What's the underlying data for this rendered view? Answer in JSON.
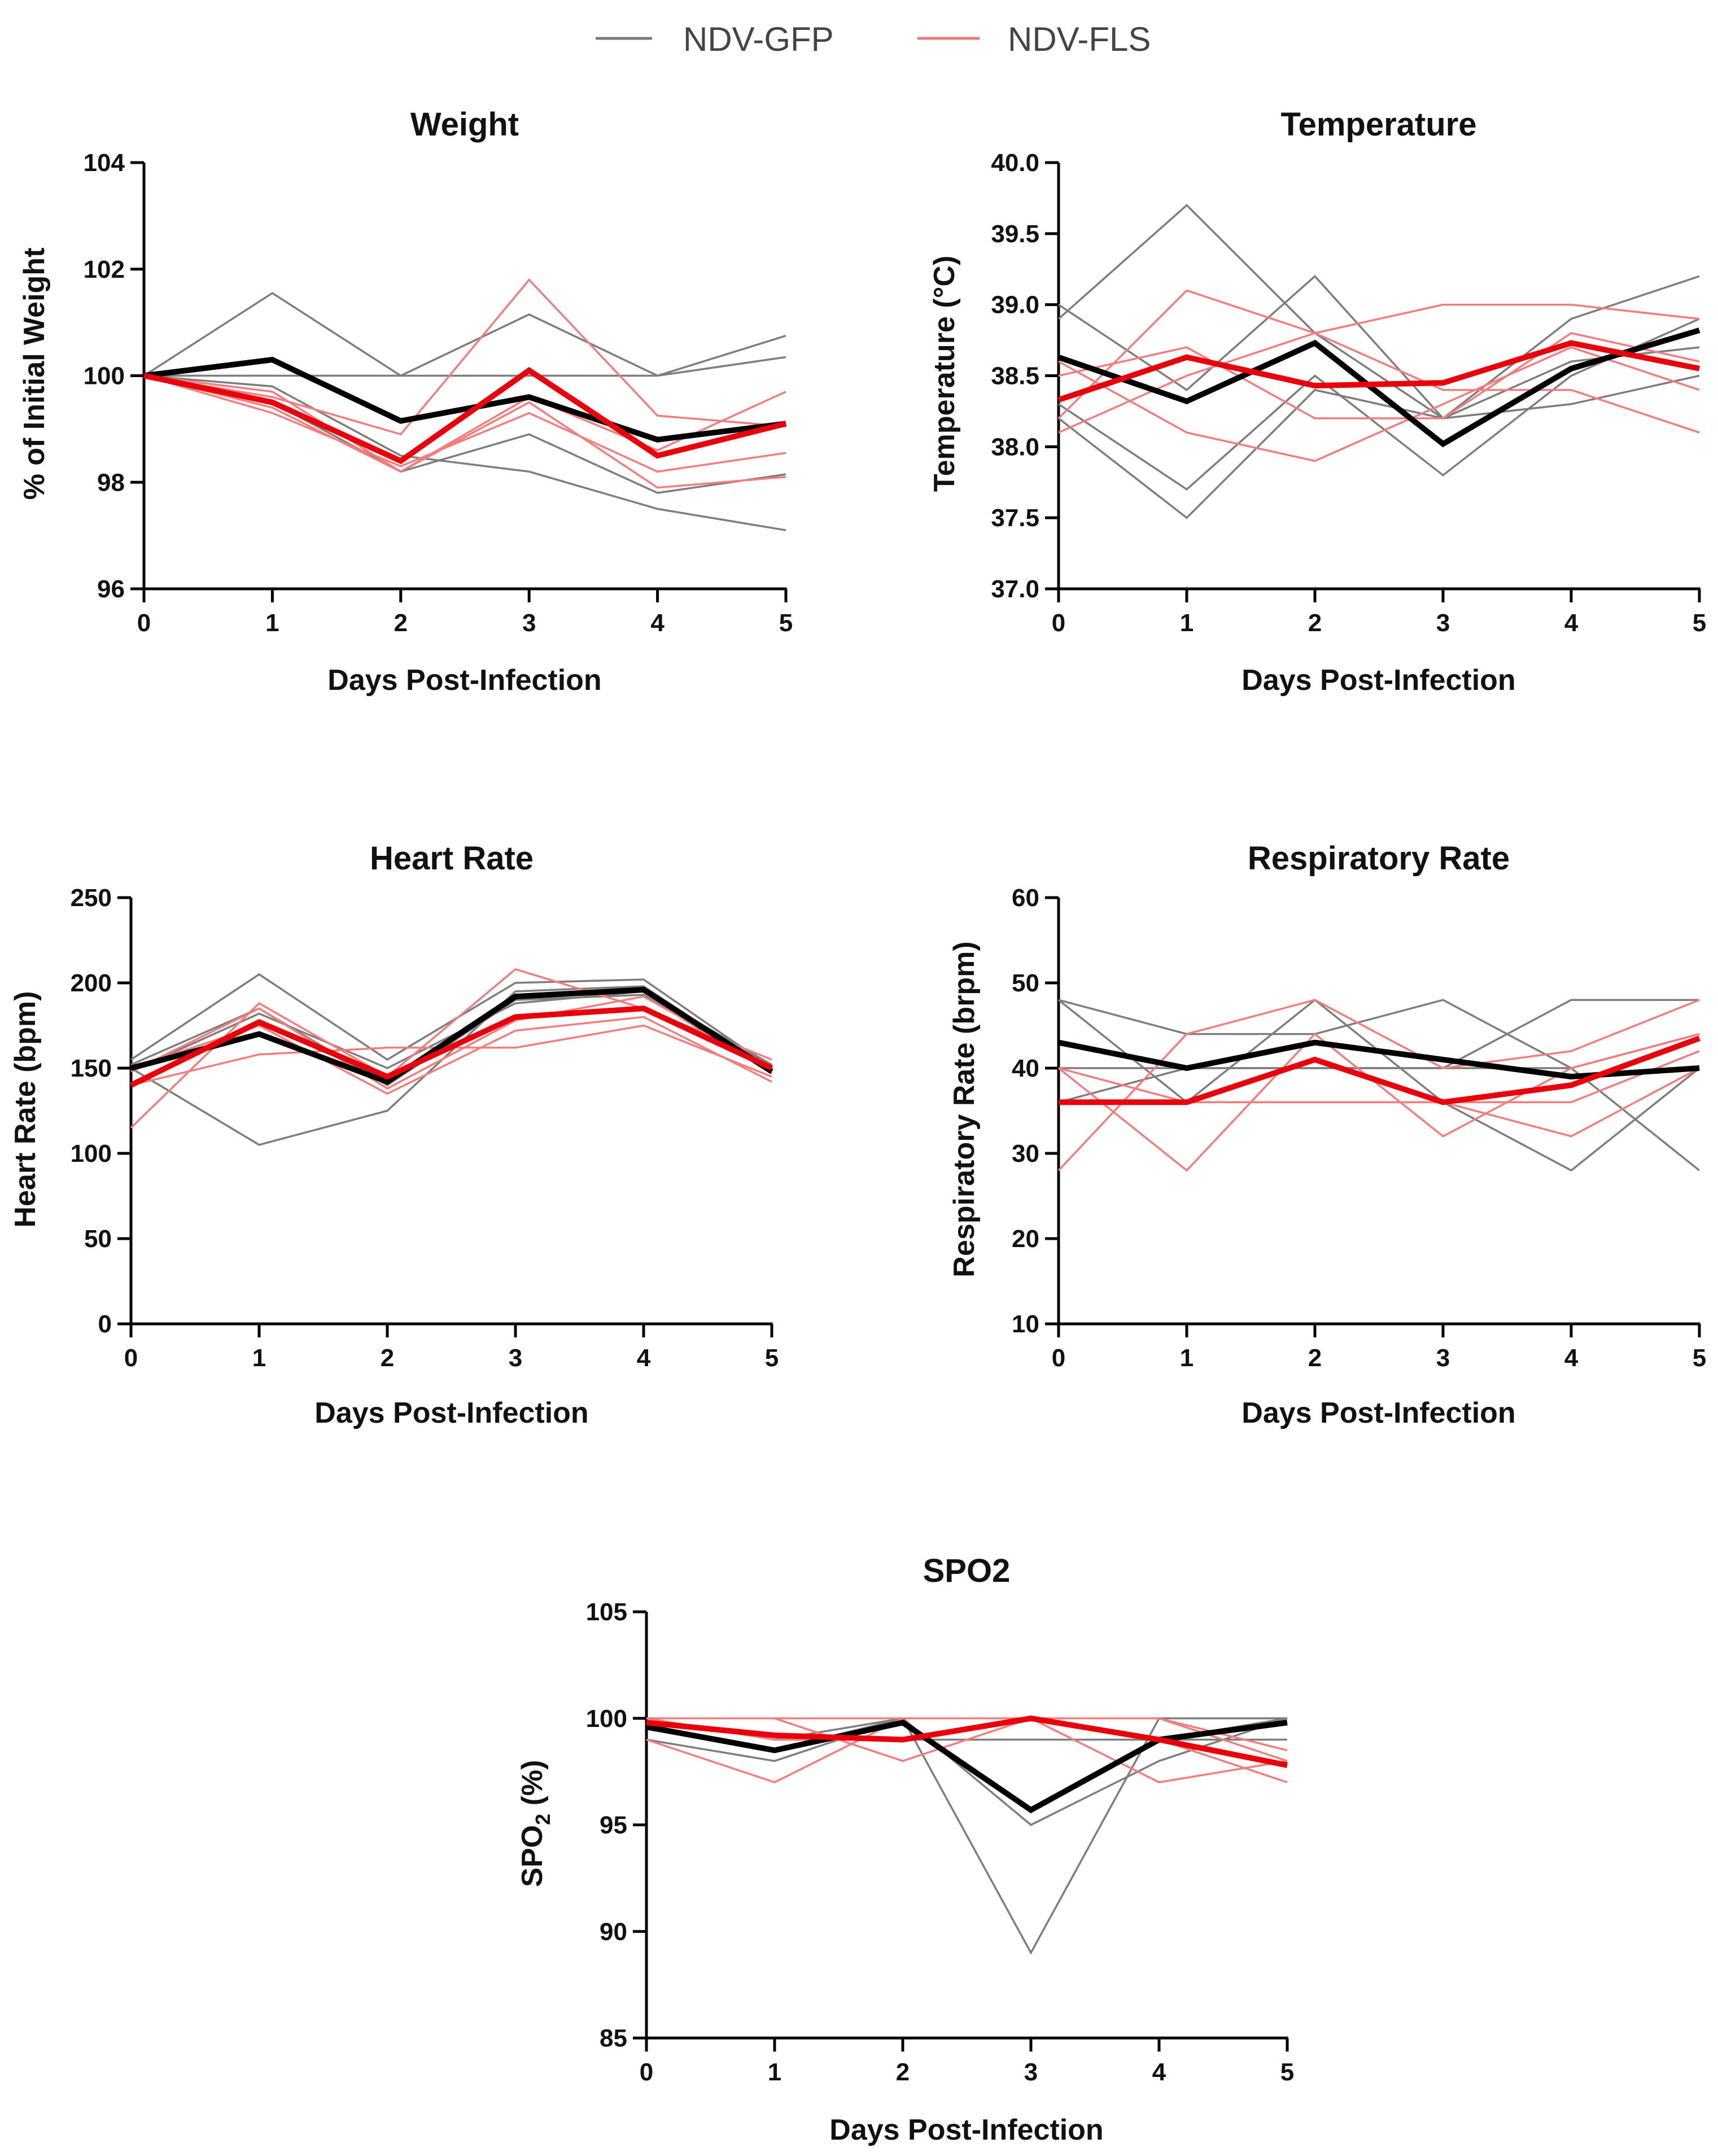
{
  "legend": {
    "items": [
      {
        "label": "NDV-GFP",
        "color": "#7a7a7a"
      },
      {
        "label": "NDV-FLS",
        "color": "#f07a7a"
      }
    ]
  },
  "colors": {
    "gfp_individual": "#7d7d7d",
    "fls_individual": "#f37c7c",
    "gfp_mean": "#000000",
    "fls_mean": "#e8000b",
    "axis": "#000000"
  },
  "chart_data": [
    {
      "id": "weight",
      "type": "line",
      "title": "Weight",
      "xlabel": "Days Post-Infection",
      "ylabel": "% of Initial Weight",
      "x": [
        0,
        1,
        2,
        3,
        4,
        5
      ],
      "xlim": [
        0,
        5
      ],
      "ylim": [
        96,
        104
      ],
      "yticks": [
        96,
        98,
        100,
        102,
        104
      ],
      "ytick_labels": [
        "96",
        "98",
        "100",
        "102",
        "104"
      ],
      "series": [
        {
          "name": "NDV-GFP animal 1",
          "group": "gfp",
          "values": [
            100,
            101.55,
            100.0,
            101.15,
            100.0,
            100.75
          ]
        },
        {
          "name": "NDV-GFP animal 2",
          "group": "gfp",
          "values": [
            100,
            100.0,
            100.0,
            100.0,
            100.0,
            100.35
          ]
        },
        {
          "name": "NDV-GFP animal 3",
          "group": "gfp",
          "values": [
            100,
            99.5,
            98.2,
            98.9,
            97.8,
            98.15
          ]
        },
        {
          "name": "NDV-GFP animal 4",
          "group": "gfp",
          "values": [
            100,
            99.8,
            98.5,
            98.2,
            97.5,
            97.1
          ]
        },
        {
          "name": "NDV-FLS animal 1",
          "group": "fls",
          "values": [
            100,
            99.6,
            98.9,
            101.8,
            99.25,
            99.05
          ]
        },
        {
          "name": "NDV-FLS animal 2",
          "group": "fls",
          "values": [
            100,
            99.4,
            98.2,
            99.6,
            98.6,
            99.7
          ]
        },
        {
          "name": "NDV-FLS animal 3",
          "group": "fls",
          "values": [
            100,
            99.3,
            98.3,
            99.3,
            98.2,
            98.55
          ]
        },
        {
          "name": "NDV-FLS animal 4",
          "group": "fls",
          "values": [
            100,
            99.7,
            98.2,
            99.5,
            97.9,
            98.1
          ]
        },
        {
          "name": "NDV-GFP mean",
          "group": "gfp_mean",
          "values": [
            100,
            100.3,
            99.15,
            99.6,
            98.8,
            99.1
          ]
        },
        {
          "name": "NDV-FLS mean",
          "group": "fls_mean",
          "values": [
            100,
            99.5,
            98.4,
            100.1,
            98.5,
            99.1
          ]
        }
      ]
    },
    {
      "id": "temperature",
      "type": "line",
      "title": "Temperature",
      "xlabel": "Days Post-Infection",
      "ylabel": "Temperature (°C)",
      "x": [
        0,
        1,
        2,
        3,
        4,
        5
      ],
      "xlim": [
        0,
        5
      ],
      "ylim": [
        37.0,
        40.0
      ],
      "yticks": [
        37.0,
        37.5,
        38.0,
        38.5,
        39.0,
        39.5,
        40.0
      ],
      "ytick_labels": [
        "37.0",
        "37.5",
        "38.0",
        "38.5",
        "39.0",
        "39.5",
        "40.0"
      ],
      "series": [
        {
          "name": "NDV-GFP animal 1",
          "group": "gfp",
          "values": [
            38.9,
            39.7,
            38.8,
            38.2,
            38.9,
            39.2
          ]
        },
        {
          "name": "NDV-GFP animal 2",
          "group": "gfp",
          "values": [
            39.0,
            38.4,
            39.2,
            38.2,
            38.3,
            38.5
          ]
        },
        {
          "name": "NDV-GFP animal 3",
          "group": "gfp",
          "values": [
            38.3,
            37.7,
            38.5,
            37.8,
            38.5,
            38.9
          ]
        },
        {
          "name": "NDV-GFP animal 4",
          "group": "gfp",
          "values": [
            38.2,
            37.5,
            38.4,
            38.2,
            38.6,
            38.7
          ]
        },
        {
          "name": "NDV-FLS animal 1",
          "group": "fls",
          "values": [
            38.2,
            39.1,
            38.8,
            39.0,
            39.0,
            38.9
          ]
        },
        {
          "name": "NDV-FLS animal 2",
          "group": "fls",
          "values": [
            38.5,
            38.7,
            38.2,
            38.2,
            38.8,
            38.6
          ]
        },
        {
          "name": "NDV-FLS animal 3",
          "group": "fls",
          "values": [
            38.1,
            38.5,
            38.8,
            38.4,
            38.4,
            38.1
          ]
        },
        {
          "name": "NDV-FLS animal 4",
          "group": "fls",
          "values": [
            38.6,
            38.1,
            37.9,
            38.3,
            38.7,
            38.4
          ]
        },
        {
          "name": "NDV-GFP mean",
          "group": "gfp_mean",
          "values": [
            38.63,
            38.32,
            38.73,
            38.02,
            38.55,
            38.82
          ]
        },
        {
          "name": "NDV-FLS mean",
          "group": "fls_mean",
          "values": [
            38.33,
            38.63,
            38.43,
            38.45,
            38.73,
            38.55
          ]
        }
      ]
    },
    {
      "id": "heart-rate",
      "type": "line",
      "title": "Heart Rate",
      "xlabel": "Days Post-Infection",
      "ylabel": "Heart Rate (bpm)",
      "x": [
        0,
        1,
        2,
        3,
        4,
        5
      ],
      "xlim": [
        0,
        5
      ],
      "ylim": [
        0,
        250
      ],
      "yticks": [
        0,
        50,
        100,
        150,
        200,
        250
      ],
      "ytick_labels": [
        "0",
        "50",
        "100",
        "150",
        "200",
        "250"
      ],
      "series": [
        {
          "name": "NDV-GFP animal 1",
          "group": "gfp",
          "values": [
            155,
            205,
            155,
            200,
            202,
            150
          ]
        },
        {
          "name": "NDV-GFP animal 2",
          "group": "gfp",
          "values": [
            150,
            105,
            125,
            195,
            198,
            148
          ]
        },
        {
          "name": "NDV-GFP animal 3",
          "group": "gfp",
          "values": [
            148,
            182,
            150,
            188,
            195,
            152
          ]
        },
        {
          "name": "NDV-GFP animal 4",
          "group": "gfp",
          "values": [
            152,
            185,
            140,
            190,
            193,
            147
          ]
        },
        {
          "name": "NDV-FLS animal 1",
          "group": "fls",
          "values": [
            115,
            188,
            145,
            208,
            185,
            155
          ]
        },
        {
          "name": "NDV-FLS animal 2",
          "group": "fls",
          "values": [
            140,
            158,
            162,
            162,
            175,
            145
          ]
        },
        {
          "name": "NDV-FLS animal 3",
          "group": "fls",
          "values": [
            148,
            185,
            138,
            178,
            192,
            150
          ]
        },
        {
          "name": "NDV-FLS animal 4",
          "group": "fls",
          "values": [
            150,
            175,
            135,
            172,
            180,
            142
          ]
        },
        {
          "name": "NDV-GFP mean",
          "group": "gfp_mean",
          "values": [
            150,
            170,
            142,
            192,
            196,
            148
          ]
        },
        {
          "name": "NDV-FLS mean",
          "group": "fls_mean",
          "values": [
            140,
            177,
            145,
            180,
            185,
            150
          ]
        }
      ]
    },
    {
      "id": "respiratory-rate",
      "type": "line",
      "title": "Respiratory Rate",
      "xlabel": "Days Post-Infection",
      "ylabel": "Respiratory Rate (brpm)",
      "x": [
        0,
        1,
        2,
        3,
        4,
        5
      ],
      "xlim": [
        0,
        5
      ],
      "ylim": [
        10,
        60
      ],
      "yticks": [
        10,
        20,
        30,
        40,
        50,
        60
      ],
      "ytick_labels": [
        "10",
        "20",
        "30",
        "40",
        "50",
        "60"
      ],
      "series": [
        {
          "name": "NDV-GFP animal 1",
          "group": "gfp",
          "values": [
            48,
            44,
            44,
            48,
            40,
            28
          ]
        },
        {
          "name": "NDV-GFP animal 2",
          "group": "gfp",
          "values": [
            48,
            36,
            48,
            36,
            28,
            40
          ]
        },
        {
          "name": "NDV-GFP animal 3",
          "group": "gfp",
          "values": [
            40,
            40,
            40,
            40,
            48,
            48
          ]
        },
        {
          "name": "NDV-GFP animal 4",
          "group": "gfp",
          "values": [
            36,
            40,
            40,
            40,
            40,
            44
          ]
        },
        {
          "name": "NDV-FLS animal 1",
          "group": "fls",
          "values": [
            28,
            44,
            48,
            40,
            42,
            48
          ]
        },
        {
          "name": "NDV-FLS animal 2",
          "group": "fls",
          "values": [
            40,
            28,
            44,
            32,
            40,
            44
          ]
        },
        {
          "name": "NDV-FLS animal 3",
          "group": "fls",
          "values": [
            36,
            36,
            36,
            36,
            32,
            40
          ]
        },
        {
          "name": "NDV-FLS animal 4",
          "group": "fls",
          "values": [
            40,
            36,
            36,
            36,
            36,
            42
          ]
        },
        {
          "name": "NDV-GFP mean",
          "group": "gfp_mean",
          "values": [
            43,
            40,
            43,
            41,
            39,
            40
          ]
        },
        {
          "name": "NDV-FLS mean",
          "group": "fls_mean",
          "values": [
            36,
            36,
            41,
            36,
            38,
            43.5
          ]
        }
      ]
    },
    {
      "id": "spo2",
      "type": "line",
      "title": "SPO2",
      "xlabel": "Days Post-Infection",
      "ylabel_main": "SPO",
      "ylabel_sub": "2",
      "ylabel_unit": " (%)",
      "x": [
        0,
        1,
        2,
        3,
        4,
        5
      ],
      "xlim": [
        0,
        5
      ],
      "ylim": [
        85,
        105
      ],
      "yticks": [
        85,
        90,
        95,
        100,
        105
      ],
      "ytick_labels": [
        "85",
        "90",
        "95",
        "100",
        "105"
      ],
      "series": [
        {
          "name": "NDV-GFP animal 1",
          "group": "gfp",
          "values": [
            100,
            99,
            99,
            99,
            99,
            99
          ]
        },
        {
          "name": "NDV-GFP animal 2",
          "group": "gfp",
          "values": [
            99,
            98,
            100,
            89,
            100,
            100
          ]
        },
        {
          "name": "NDV-GFP animal 3",
          "group": "gfp",
          "values": [
            99.5,
            98.5,
            100,
            95,
            98,
            100
          ]
        },
        {
          "name": "NDV-GFP animal 4",
          "group": "gfp",
          "values": [
            100,
            99,
            100,
            100,
            99,
            100
          ]
        },
        {
          "name": "NDV-FLS animal 1",
          "group": "fls",
          "values": [
            100,
            100,
            98,
            100,
            97,
            98
          ]
        },
        {
          "name": "NDV-FLS animal 2",
          "group": "fls",
          "values": [
            99,
            97,
            100,
            100,
            99,
            97
          ]
        },
        {
          "name": "NDV-FLS animal 3",
          "group": "fls",
          "values": [
            100,
            100,
            100,
            100,
            100,
            98.5
          ]
        },
        {
          "name": "NDV-FLS animal 4",
          "group": "fls",
          "values": [
            100,
            99,
            99,
            100,
            100,
            98
          ]
        },
        {
          "name": "NDV-GFP mean",
          "group": "gfp_mean",
          "values": [
            99.6,
            98.5,
            99.8,
            95.7,
            99,
            99.8
          ]
        },
        {
          "name": "NDV-FLS mean",
          "group": "fls_mean",
          "values": [
            99.8,
            99.2,
            99,
            100,
            99,
            97.8
          ]
        }
      ]
    }
  ]
}
